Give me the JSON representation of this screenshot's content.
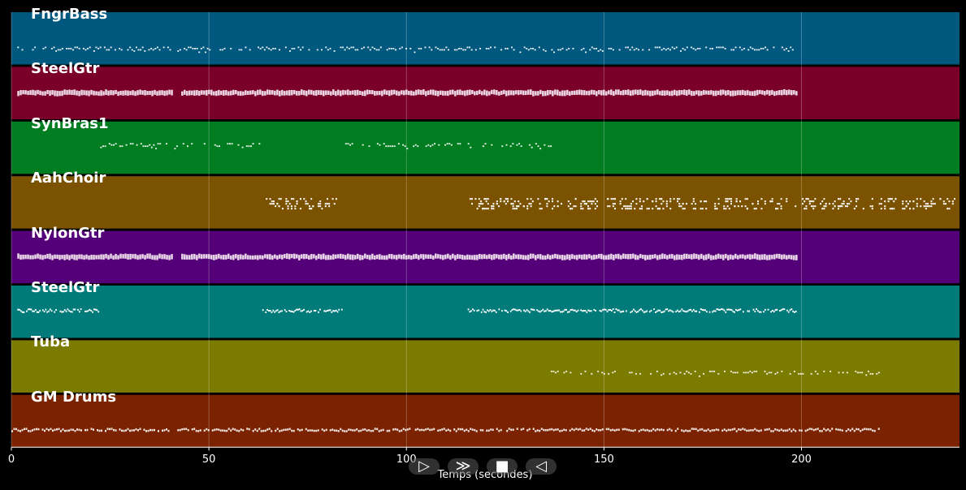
{
  "tracks": [
    {
      "name": "FngrBass",
      "color": "#00587f",
      "segments": [
        [
          1.5,
          40.5
        ],
        [
          42,
          198.5
        ]
      ],
      "density": 0.7,
      "style": "sparse"
    },
    {
      "name": "SteelGtr",
      "color": "#7b0029",
      "segments": [
        [
          1.5,
          40.5
        ],
        [
          43,
          198.5
        ]
      ],
      "density": 1.0,
      "style": "solid"
    },
    {
      "name": "SynBras1",
      "color": "#007d21",
      "segments": [
        [
          22.5,
          64
        ],
        [
          84.5,
          136.5
        ]
      ],
      "density": 0.55,
      "style": "sparse"
    },
    {
      "name": "AahChoir",
      "color": "#7b5200",
      "segments": [
        [
          63.5,
          82.5
        ],
        [
          115.5,
          239
        ]
      ],
      "density": 0.75,
      "style": "choir"
    },
    {
      "name": "NylonGtr",
      "color": "#540078",
      "segments": [
        [
          1.5,
          40.5
        ],
        [
          43,
          198.5
        ]
      ],
      "density": 1.0,
      "style": "solid"
    },
    {
      "name": "SteelGtr",
      "color": "#007b7a",
      "segments": [
        [
          1.5,
          22
        ],
        [
          63.5,
          84
        ],
        [
          115.5,
          198.5
        ]
      ],
      "density": 0.85,
      "style": "dense"
    },
    {
      "name": "Tuba",
      "color": "#7b7b00",
      "segments": [
        [
          136,
          219.5
        ]
      ],
      "density": 0.45,
      "style": "sparse"
    },
    {
      "name": "GM Drums",
      "color": "#7b2300",
      "segments": [
        [
          0,
          40.5
        ],
        [
          42,
          219.5
        ]
      ],
      "density": 0.9,
      "style": "drums"
    }
  ],
  "chart_data": {
    "type": "piano-roll",
    "x_ticks": [
      0,
      50,
      100,
      150,
      200
    ],
    "x_tick_labels": [
      "0",
      "50",
      "100",
      "150",
      "200"
    ],
    "xlim": [
      0,
      240
    ],
    "xlabel": "Temps (secondes)",
    "grid": true
  },
  "controls": {
    "play_fwd": "▷",
    "fast_fwd": "≫",
    "stop": "■",
    "rewind": "◁"
  }
}
